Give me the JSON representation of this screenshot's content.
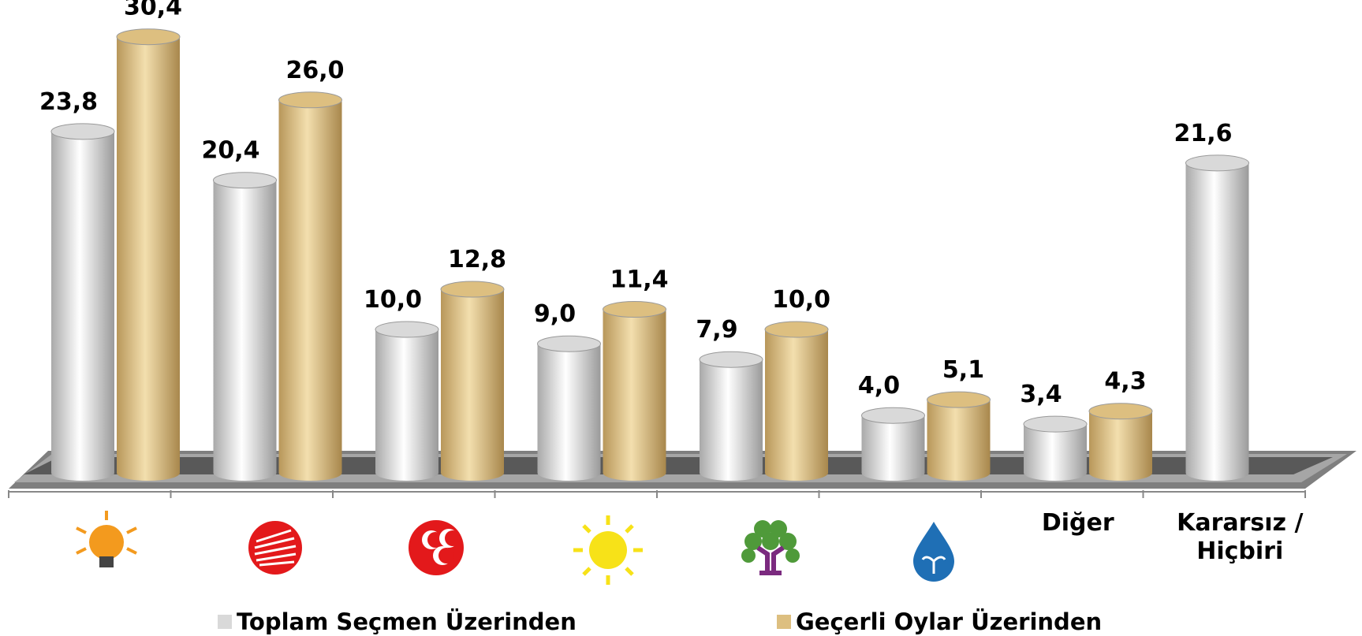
{
  "chart_data": {
    "type": "bar",
    "categories": [
      null,
      null,
      null,
      null,
      null,
      null,
      "Diğer",
      "Kararsız / Hiçbiri"
    ],
    "series": [
      {
        "name": "Toplam Seçmen Üzerinden",
        "color": "#d9d9d9",
        "values": [
          23.8,
          20.4,
          10.0,
          9.0,
          7.9,
          4.0,
          3.4,
          21.6
        ],
        "value_labels": [
          "23,8",
          "20,4",
          "10,0",
          "9,0",
          "7,9",
          "4,0",
          "3,4",
          "21,6"
        ]
      },
      {
        "name": "Geçerli Oylar Üzerinden",
        "color": "#ddbf80",
        "values": [
          30.4,
          26.0,
          12.8,
          11.4,
          10.0,
          5.1,
          4.3,
          null
        ],
        "value_labels": [
          "30,4",
          "26,0",
          "12,8",
          "11,4",
          "10,0",
          "5,1",
          "4,3",
          null
        ]
      }
    ],
    "legend": "bottom"
  }
}
